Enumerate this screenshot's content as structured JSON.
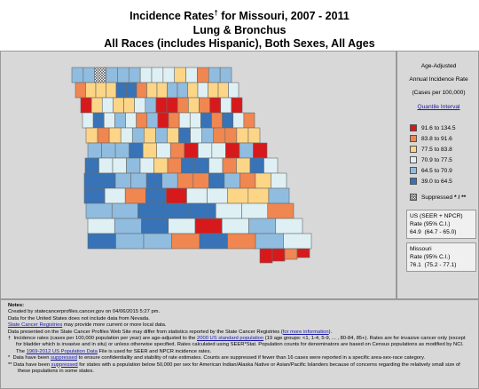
{
  "title": {
    "main": "Incidence Rates",
    "dagger": "†",
    "suffix": " for Missouri, 2007 - 2011",
    "line2": "Lung & Bronchus",
    "line3": "All Races (includes Hispanic), Both Sexes, All Ages"
  },
  "legend": {
    "head1": "Age-Adjusted",
    "head2": "Annual Incidence Rate",
    "head3": "(Cases per 100,000)",
    "link": "Quantile Interval",
    "bins": [
      {
        "label": "91.6 to 134.5",
        "color": "#d7191c"
      },
      {
        "label": "83.8 to 91.6",
        "color": "#f08650"
      },
      {
        "label": "77.5 to 83.8",
        "color": "#fdd587"
      },
      {
        "label": "70.9 to 77.5",
        "color": "#def0f4"
      },
      {
        "label": "64.5 to 70.9",
        "color": "#90bcdf"
      },
      {
        "label": "39.0 to 64.5",
        "color": "#3773b6"
      }
    ],
    "suppressed_label": "Suppressed",
    "suppressed_marks": "* / **",
    "us_box": {
      "line1": "US (SEER + NPCR)",
      "line2": "Rate (95% C.I.)",
      "value": "64.9",
      "ci": "(64.7 - 65.0)"
    },
    "mo_box": {
      "line1": "Missouri",
      "line2": "Rate (95% C.I.)",
      "value": "76.1",
      "ci": "(75.2 - 77.1)"
    }
  },
  "notes": {
    "heading": "Notes:",
    "created": "Created by statecancerprofiles.cancer.gov on 04/06/2015 5:27 pm.",
    "nevada": "Data for the United States does not include data from Nevada.",
    "registries_link": "State Cancer Registries",
    "registries_text": " may provide more current or more local data.",
    "differ_text": "Data presented on the State Cancer Profiles Web Site may differ from statistics reported by the State Cancer Registries (",
    "more_info_link": "for more information",
    "differ_end": ").",
    "dagger_a": "Incidence rates (cases per 100,000 population per year) are age-adjusted to the ",
    "std_pop_link": "2000 US standard population",
    "dagger_b": " (19 age groups: <1, 1-4, 5-9, ... , 80-84, 85+). Rates are for invasive cancer only (except for bladder which is invasive and in situ) or unless otherwise specified. Rates calculated using SEER*Stat. Population counts for denominators are based on Census populations as modified  by NCI. The ",
    "pop_data_link": "1969-2012 US Population Data",
    "dagger_c": " File is used for SEER and NPCR incidence rates.",
    "star_a": "Data have been ",
    "suppressed_link": "suppressed",
    "star_b": " to ensure confidentiality and stability of rate estimates. Counts are suppressed if fewer than 16 cases were reported in a specific area-sex-race category.",
    "dstar_a": "Data have been ",
    "dstar_b": " for states with a population below 50,000 per sex for American Indian/Alaska Native or Asian/Pacific Islanders because of concerns regarding the relatively small size of these populations in some states."
  },
  "map_data": {
    "counties": [
      "44444433323144",
      "1222551224423223",
      "023223400121030",
      "3534314013351531",
      "212342425341122",
      "4445231033040",
      "53343215531253",
      "5544541154123",
      "5315033224",
      "44555331",
      "34530343",
      "54415143"
    ],
    "bootheel": "0010",
    "suppressed_county": "row 0, col 2"
  }
}
